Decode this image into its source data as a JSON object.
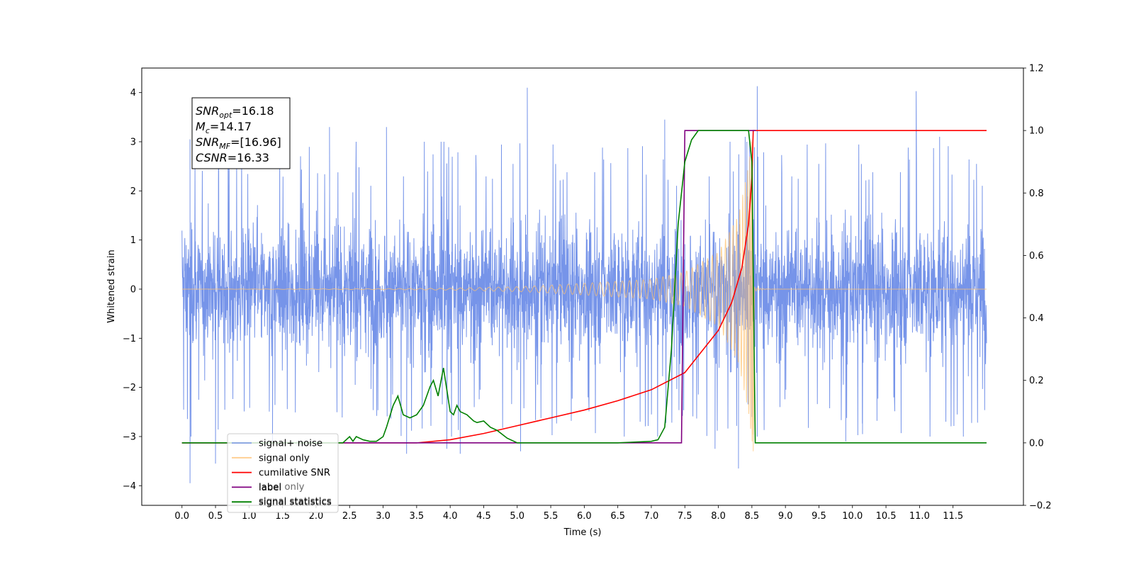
{
  "chart_data": {
    "type": "line",
    "xlabel": "Time (s)",
    "ylabel": "Whitened strain",
    "xlim": [
      -0.6,
      12.55
    ],
    "ylim": [
      -4.4,
      4.5
    ],
    "ylim_right": [
      -0.2,
      1.2
    ],
    "x_ticks": [
      "0.0",
      "0.5",
      "1.0",
      "1.5",
      "2.0",
      "2.5",
      "3.0",
      "3.5",
      "4.0",
      "4.5",
      "5.0",
      "5.5",
      "6.0",
      "6.5",
      "7.0",
      "7.5",
      "8.0",
      "8.5",
      "9.0",
      "9.5",
      "10.0",
      "10.5",
      "11.0",
      "11.5"
    ],
    "y_ticks": [
      "−4",
      "−3",
      "−2",
      "−1",
      "0",
      "1",
      "2",
      "3",
      "4"
    ],
    "y_ticks_right": [
      "−0.2",
      "0.0",
      "0.2",
      "0.4",
      "0.6",
      "0.8",
      "1.0",
      "1.2"
    ],
    "grid": false,
    "legend_position": "lower-left",
    "annotation": {
      "lines": [
        {
          "sym": "SNR",
          "sub": "opt",
          "val": "=16.18"
        },
        {
          "sym": "M",
          "sub": "c",
          "val": "=14.17"
        },
        {
          "sym": "SNR",
          "sub": "MF",
          "val": "=[16.96]"
        },
        {
          "sym": "CSNR",
          "sub": "",
          "val": "=16.33"
        }
      ]
    },
    "series": [
      {
        "name": "signal+ noise",
        "axis": "left",
        "color": "#6f8ee8",
        "kind": "noise",
        "x_range": [
          0.0,
          12.0
        ],
        "typical_range": [
          -1.5,
          1.8
        ],
        "extreme_range": [
          -3.95,
          4.13
        ],
        "peaks": [
          {
            "x": 0.12,
            "y": 3.05
          },
          {
            "x": 0.25,
            "y": -2.25
          },
          {
            "x": 0.5,
            "y": -3.55
          },
          {
            "x": 0.12,
            "y": -3.95
          },
          {
            "x": 1.35,
            "y": -3.1
          },
          {
            "x": 2.2,
            "y": 3.3
          },
          {
            "x": 3.05,
            "y": 3.3
          },
          {
            "x": 3.35,
            "y": -3.35
          },
          {
            "x": 3.95,
            "y": -3.25
          },
          {
            "x": 4.15,
            "y": -3.35
          },
          {
            "x": 5.15,
            "y": 4.1
          },
          {
            "x": 5.05,
            "y": -3.3
          },
          {
            "x": 7.2,
            "y": 3.45
          },
          {
            "x": 7.95,
            "y": -3.25
          },
          {
            "x": 8.3,
            "y": -3.65
          },
          {
            "x": 8.4,
            "y": 3.1
          },
          {
            "x": 8.5,
            "y": -2.6
          },
          {
            "x": 8.58,
            "y": 4.13
          },
          {
            "x": 9.9,
            "y": -3.1
          },
          {
            "x": 10.15,
            "y": -2.95
          },
          {
            "x": 10.95,
            "y": 4.03
          },
          {
            "x": 11.3,
            "y": 3.1
          },
          {
            "x": 11.85,
            "y": 2.55
          }
        ]
      },
      {
        "name": "signal only",
        "axis": "left",
        "color": "#ffc170",
        "kind": "chirp",
        "x_range": [
          0.0,
          12.0
        ],
        "merger_x": 8.52,
        "envelope": [
          [
            0.0,
            0.0
          ],
          [
            3.0,
            0.01
          ],
          [
            4.0,
            0.02
          ],
          [
            5.0,
            0.05
          ],
          [
            5.5,
            0.08
          ],
          [
            6.0,
            0.12
          ],
          [
            7.0,
            0.2
          ],
          [
            7.5,
            0.35
          ],
          [
            8.0,
            0.75
          ],
          [
            8.3,
            1.5
          ],
          [
            8.45,
            2.5
          ],
          [
            8.5,
            3.1
          ]
        ],
        "min_value": -3.3
      },
      {
        "name": "cumilative SNR",
        "axis": "right",
        "color": "#ff0000",
        "x": [
          0.0,
          3.5,
          4.0,
          4.5,
          5.0,
          5.5,
          6.0,
          6.5,
          7.0,
          7.5,
          8.0,
          8.2,
          8.35,
          8.45,
          8.5,
          8.52,
          12.0
        ],
        "y": [
          0.0,
          0.0,
          0.01,
          0.03,
          0.055,
          0.08,
          0.105,
          0.135,
          0.17,
          0.225,
          0.36,
          0.45,
          0.56,
          0.7,
          0.85,
          1.0,
          1.0
        ]
      },
      {
        "name": "label",
        "axis": "right",
        "color": "#800080",
        "x": [
          0.0,
          7.45,
          7.5,
          8.55,
          8.56
        ],
        "y": [
          0.0,
          0.0,
          1.0,
          1.0,
          1.0
        ]
      },
      {
        "name": "signal statistics",
        "axis": "right",
        "color": "#008000",
        "x": [
          0.0,
          2.4,
          2.5,
          2.55,
          2.6,
          2.7,
          2.8,
          2.9,
          3.0,
          3.05,
          3.15,
          3.22,
          3.3,
          3.4,
          3.5,
          3.6,
          3.7,
          3.75,
          3.82,
          3.9,
          4.0,
          4.05,
          4.1,
          4.15,
          4.25,
          4.35,
          4.4,
          4.5,
          4.6,
          4.7,
          4.85,
          5.0,
          6.5,
          7.0,
          7.1,
          7.2,
          7.3,
          7.4,
          7.5,
          7.6,
          7.7,
          7.8,
          7.9,
          8.0,
          8.45,
          8.5,
          8.55,
          8.6,
          12.0
        ],
        "y": [
          0.0,
          0.0,
          0.02,
          0.005,
          0.02,
          0.01,
          0.005,
          0.005,
          0.02,
          0.05,
          0.12,
          0.15,
          0.09,
          0.08,
          0.09,
          0.12,
          0.18,
          0.2,
          0.15,
          0.24,
          0.1,
          0.09,
          0.12,
          0.1,
          0.09,
          0.07,
          0.065,
          0.07,
          0.05,
          0.04,
          0.015,
          0.0,
          0.0,
          0.005,
          0.01,
          0.05,
          0.3,
          0.7,
          0.9,
          0.97,
          1.0,
          1.0,
          1.0,
          1.0,
          1.0,
          0.9,
          0.0,
          0.0,
          0.0
        ]
      }
    ],
    "legend_overlap_text": [
      "label only",
      "signal statistics"
    ]
  }
}
